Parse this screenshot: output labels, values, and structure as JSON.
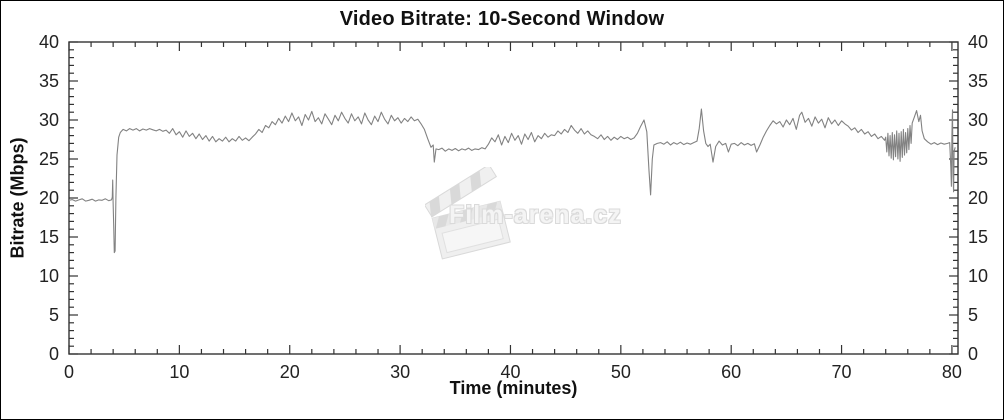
{
  "title": "Video Bitrate: 10-Second Window",
  "watermark": {
    "text": "Film-arena.cz",
    "icon": "clapperboard-icon",
    "color": "#dedede"
  },
  "colors": {
    "line": "#828282",
    "axis": "#333333",
    "tick_text": "#222222",
    "background": "#ffffff"
  },
  "chart_data": {
    "type": "line",
    "title": "Video Bitrate: 10-Second Window",
    "xlabel": "Time (minutes)",
    "ylabel": "Bitrate (Mbps)",
    "xlim": [
      0,
      80.55
    ],
    "ylim": [
      0,
      40
    ],
    "x_major_ticks": [
      0,
      10,
      20,
      30,
      40,
      50,
      60,
      70,
      80
    ],
    "x_minor_step": 2,
    "y_major_ticks": [
      0,
      5,
      10,
      15,
      20,
      25,
      30,
      35,
      40
    ],
    "y_minor_step": 1,
    "grid": false,
    "legend": "none",
    "mirrored_axes": true,
    "series": [
      {
        "name": "video-bitrate-mbps",
        "points": [
          [
            0,
            19.7
          ],
          [
            0.3,
            19.8
          ],
          [
            0.6,
            19.6
          ],
          [
            0.9,
            19.75
          ],
          [
            1.2,
            19.9
          ],
          [
            1.5,
            19.6
          ],
          [
            1.8,
            19.7
          ],
          [
            2.1,
            19.85
          ],
          [
            2.4,
            19.6
          ],
          [
            2.7,
            19.75
          ],
          [
            3,
            19.7
          ],
          [
            3.3,
            19.9
          ],
          [
            3.6,
            19.65
          ],
          [
            3.85,
            19.75
          ],
          [
            3.92,
            20.1
          ],
          [
            3.96,
            22.3
          ],
          [
            4,
            19.5
          ],
          [
            4.05,
            16.5
          ],
          [
            4.1,
            13
          ],
          [
            4.18,
            13.2
          ],
          [
            4.25,
            20
          ],
          [
            4.35,
            25.5
          ],
          [
            4.5,
            27.8
          ],
          [
            4.65,
            28.4
          ],
          [
            4.9,
            28.8
          ],
          [
            5.2,
            28.6
          ],
          [
            5.5,
            28.9
          ],
          [
            5.8,
            28.7
          ],
          [
            6.1,
            28.9
          ],
          [
            6.4,
            28.6
          ],
          [
            6.7,
            28.85
          ],
          [
            7,
            28.7
          ],
          [
            7.3,
            28.9
          ],
          [
            7.6,
            28.75
          ],
          [
            7.9,
            28.6
          ],
          [
            8.2,
            28.8
          ],
          [
            8.5,
            28.55
          ],
          [
            8.8,
            28.7
          ],
          [
            9.1,
            28.3
          ],
          [
            9.4,
            28.9
          ],
          [
            9.7,
            28.1
          ],
          [
            10,
            28.5
          ],
          [
            10.3,
            27.8
          ],
          [
            10.6,
            28.6
          ],
          [
            10.9,
            27.9
          ],
          [
            11.2,
            28.3
          ],
          [
            11.5,
            27.6
          ],
          [
            11.8,
            28.2
          ],
          [
            12.1,
            27.5
          ],
          [
            12.4,
            28
          ],
          [
            12.7,
            27.3
          ],
          [
            13,
            27.9
          ],
          [
            13.3,
            27.2
          ],
          [
            13.6,
            27.6
          ],
          [
            13.9,
            27.3
          ],
          [
            14.2,
            27.8
          ],
          [
            14.5,
            27.2
          ],
          [
            14.8,
            27.6
          ],
          [
            15.1,
            27.3
          ],
          [
            15.4,
            27.9
          ],
          [
            15.7,
            27.4
          ],
          [
            16,
            27.7
          ],
          [
            16.3,
            27.35
          ],
          [
            16.6,
            27.8
          ],
          [
            16.9,
            28.2
          ],
          [
            17.2,
            28.8
          ],
          [
            17.5,
            28.4
          ],
          [
            17.8,
            29.3
          ],
          [
            18.1,
            29
          ],
          [
            18.4,
            29.8
          ],
          [
            18.7,
            29.4
          ],
          [
            19,
            30.2
          ],
          [
            19.3,
            29.6
          ],
          [
            19.6,
            30.5
          ],
          [
            19.9,
            29.8
          ],
          [
            20.2,
            30.9
          ],
          [
            20.5,
            29.9
          ],
          [
            20.8,
            30.4
          ],
          [
            21.1,
            29.3
          ],
          [
            21.4,
            30.7
          ],
          [
            21.7,
            30
          ],
          [
            22,
            31.1
          ],
          [
            22.3,
            29.8
          ],
          [
            22.6,
            30.3
          ],
          [
            22.9,
            29.5
          ],
          [
            23.2,
            30.8
          ],
          [
            23.5,
            30.1
          ],
          [
            23.8,
            29.4
          ],
          [
            24.1,
            30.6
          ],
          [
            24.4,
            29.9
          ],
          [
            24.7,
            31
          ],
          [
            25,
            30.2
          ],
          [
            25.3,
            29.6
          ],
          [
            25.6,
            30.8
          ],
          [
            25.9,
            29.9
          ],
          [
            26.2,
            30.4
          ],
          [
            26.5,
            29.5
          ],
          [
            26.8,
            30.9
          ],
          [
            27.1,
            30
          ],
          [
            27.4,
            29.4
          ],
          [
            27.7,
            30.5
          ],
          [
            28,
            29.8
          ],
          [
            28.3,
            31
          ],
          [
            28.6,
            30.1
          ],
          [
            28.9,
            29.5
          ],
          [
            29.2,
            30.6
          ],
          [
            29.5,
            29.9
          ],
          [
            29.8,
            30.3
          ],
          [
            30.1,
            29.6
          ],
          [
            30.4,
            30.2
          ],
          [
            30.7,
            29.8
          ],
          [
            31,
            30.4
          ],
          [
            31.3,
            29.9
          ],
          [
            31.6,
            30.1
          ],
          [
            31.9,
            29.5
          ],
          [
            32.2,
            28.8
          ],
          [
            32.5,
            27.6
          ],
          [
            32.8,
            26.5
          ],
          [
            33,
            26.8
          ],
          [
            33.1,
            24.6
          ],
          [
            33.25,
            26.3
          ],
          [
            33.5,
            26.2
          ],
          [
            33.8,
            26.4
          ],
          [
            34.1,
            26
          ],
          [
            34.4,
            26.3
          ],
          [
            34.7,
            26.1
          ],
          [
            35,
            26.35
          ],
          [
            35.3,
            26.05
          ],
          [
            35.6,
            26.3
          ],
          [
            35.9,
            26.15
          ],
          [
            36.2,
            26.4
          ],
          [
            36.5,
            26.1
          ],
          [
            36.8,
            26.3
          ],
          [
            37.1,
            26.2
          ],
          [
            37.4,
            26.45
          ],
          [
            37.7,
            26.3
          ],
          [
            38,
            26.9
          ],
          [
            38.3,
            27.7
          ],
          [
            38.6,
            27.2
          ],
          [
            38.9,
            28.1
          ],
          [
            39.2,
            26.8
          ],
          [
            39.5,
            27.9
          ],
          [
            39.8,
            27.1
          ],
          [
            40.1,
            28.3
          ],
          [
            40.4,
            27.4
          ],
          [
            40.7,
            28
          ],
          [
            41,
            26.9
          ],
          [
            41.3,
            28.2
          ],
          [
            41.6,
            27.5
          ],
          [
            41.9,
            28.4
          ],
          [
            42.2,
            27.2
          ],
          [
            42.5,
            28
          ],
          [
            42.8,
            27.6
          ],
          [
            43.1,
            28.3
          ],
          [
            43.4,
            27.8
          ],
          [
            43.7,
            28.1
          ],
          [
            44,
            28
          ],
          [
            44.3,
            28.6
          ],
          [
            44.6,
            28.2
          ],
          [
            44.9,
            28.8
          ],
          [
            45.2,
            28.4
          ],
          [
            45.5,
            29.3
          ],
          [
            45.8,
            28.7
          ],
          [
            46.1,
            28.3
          ],
          [
            46.4,
            28.9
          ],
          [
            46.7,
            28.2
          ],
          [
            47,
            28.6
          ],
          [
            47.3,
            28.1
          ],
          [
            47.6,
            27.9
          ],
          [
            47.9,
            27.6
          ],
          [
            48.2,
            28.1
          ],
          [
            48.5,
            27.5
          ],
          [
            48.8,
            27.9
          ],
          [
            49.1,
            27.4
          ],
          [
            49.4,
            27.8
          ],
          [
            49.7,
            27.5
          ],
          [
            50,
            27.9
          ],
          [
            50.3,
            27.6
          ],
          [
            50.6,
            27.8
          ],
          [
            50.9,
            27.5
          ],
          [
            51.2,
            27.7
          ],
          [
            51.5,
            28.3
          ],
          [
            51.8,
            29.2
          ],
          [
            52.1,
            30
          ],
          [
            52.35,
            28.5
          ],
          [
            52.55,
            23.5
          ],
          [
            52.7,
            20.4
          ],
          [
            52.85,
            25
          ],
          [
            53,
            26.8
          ],
          [
            53.3,
            27
          ],
          [
            53.6,
            27.1
          ],
          [
            53.9,
            26.9
          ],
          [
            54.2,
            27.2
          ],
          [
            54.5,
            26.8
          ],
          [
            54.8,
            27.1
          ],
          [
            55.1,
            26.9
          ],
          [
            55.4,
            27.15
          ],
          [
            55.7,
            26.85
          ],
          [
            56,
            27.05
          ],
          [
            56.3,
            26.9
          ],
          [
            56.6,
            27.1
          ],
          [
            56.9,
            27.3
          ],
          [
            57.1,
            28.9
          ],
          [
            57.3,
            31.4
          ],
          [
            57.5,
            28.6
          ],
          [
            57.7,
            27
          ],
          [
            57.9,
            26.6
          ],
          [
            58.1,
            26.9
          ],
          [
            58.35,
            24.6
          ],
          [
            58.6,
            26.6
          ],
          [
            58.9,
            27.3
          ],
          [
            59.2,
            26.8
          ],
          [
            59.5,
            27
          ],
          [
            59.75,
            25.9
          ],
          [
            60,
            26.9
          ],
          [
            60.3,
            27
          ],
          [
            60.6,
            26.7
          ],
          [
            60.9,
            27.1
          ],
          [
            61.2,
            26.8
          ],
          [
            61.5,
            27
          ],
          [
            61.8,
            26.75
          ],
          [
            62.1,
            26.95
          ],
          [
            62.3,
            25.9
          ],
          [
            62.6,
            26.8
          ],
          [
            62.9,
            27.8
          ],
          [
            63.2,
            28.6
          ],
          [
            63.5,
            29.3
          ],
          [
            63.8,
            29.9
          ],
          [
            64.1,
            29.5
          ],
          [
            64.4,
            29.8
          ],
          [
            64.7,
            29.1
          ],
          [
            65,
            30
          ],
          [
            65.3,
            29.4
          ],
          [
            65.6,
            30.2
          ],
          [
            65.9,
            28.8
          ],
          [
            66.2,
            30.6
          ],
          [
            66.4,
            31
          ],
          [
            66.7,
            29.7
          ],
          [
            67,
            30.2
          ],
          [
            67.3,
            29.2
          ],
          [
            67.6,
            30.4
          ],
          [
            67.9,
            29.6
          ],
          [
            68.2,
            30.1
          ],
          [
            68.5,
            29
          ],
          [
            68.8,
            30.3
          ],
          [
            69.1,
            29.5
          ],
          [
            69.4,
            30
          ],
          [
            69.7,
            29.3
          ],
          [
            70,
            29.9
          ],
          [
            70.3,
            29.5
          ],
          [
            70.6,
            29.2
          ],
          [
            70.9,
            28.7
          ],
          [
            71.2,
            29
          ],
          [
            71.5,
            28.4
          ],
          [
            71.8,
            28.8
          ],
          [
            72.1,
            28.2
          ],
          [
            72.4,
            28.5
          ],
          [
            72.7,
            27.9
          ],
          [
            73,
            28.2
          ],
          [
            73.3,
            27.6
          ],
          [
            73.6,
            27.9
          ],
          [
            73.9,
            27.4
          ],
          [
            74,
            27.8
          ],
          [
            74.1,
            25.9
          ],
          [
            74.2,
            28.3
          ],
          [
            74.3,
            25.4
          ],
          [
            74.4,
            28
          ],
          [
            74.5,
            25.1
          ],
          [
            74.6,
            28.4
          ],
          [
            74.7,
            24.9
          ],
          [
            74.8,
            28.1
          ],
          [
            74.9,
            25.3
          ],
          [
            75,
            28.6
          ],
          [
            75.1,
            25
          ],
          [
            75.2,
            28.3
          ],
          [
            75.3,
            24.7
          ],
          [
            75.4,
            28.5
          ],
          [
            75.5,
            25.2
          ],
          [
            75.6,
            28.8
          ],
          [
            75.7,
            25.5
          ],
          [
            75.8,
            28.4
          ],
          [
            75.9,
            25.8
          ],
          [
            76,
            28.9
          ],
          [
            76.1,
            26.2
          ],
          [
            76.2,
            29.3
          ],
          [
            76.3,
            27
          ],
          [
            76.4,
            29.6
          ],
          [
            76.6,
            30.4
          ],
          [
            76.8,
            31.2
          ],
          [
            77,
            29.8
          ],
          [
            77.15,
            30.6
          ],
          [
            77.3,
            28.6
          ],
          [
            77.5,
            27.6
          ],
          [
            77.8,
            27.2
          ],
          [
            78.1,
            26.9
          ],
          [
            78.4,
            27.1
          ],
          [
            78.7,
            26.85
          ],
          [
            79,
            27.05
          ],
          [
            79.3,
            26.9
          ],
          [
            79.6,
            27
          ],
          [
            79.8,
            27.1
          ],
          [
            79.9,
            24
          ],
          [
            79.95,
            21.5
          ],
          [
            80,
            28
          ],
          [
            80.05,
            31.3
          ],
          [
            80.1,
            23
          ],
          [
            80.15,
            20.8
          ],
          [
            80.2,
            26
          ],
          [
            80.3,
            26.5
          ]
        ]
      }
    ]
  }
}
